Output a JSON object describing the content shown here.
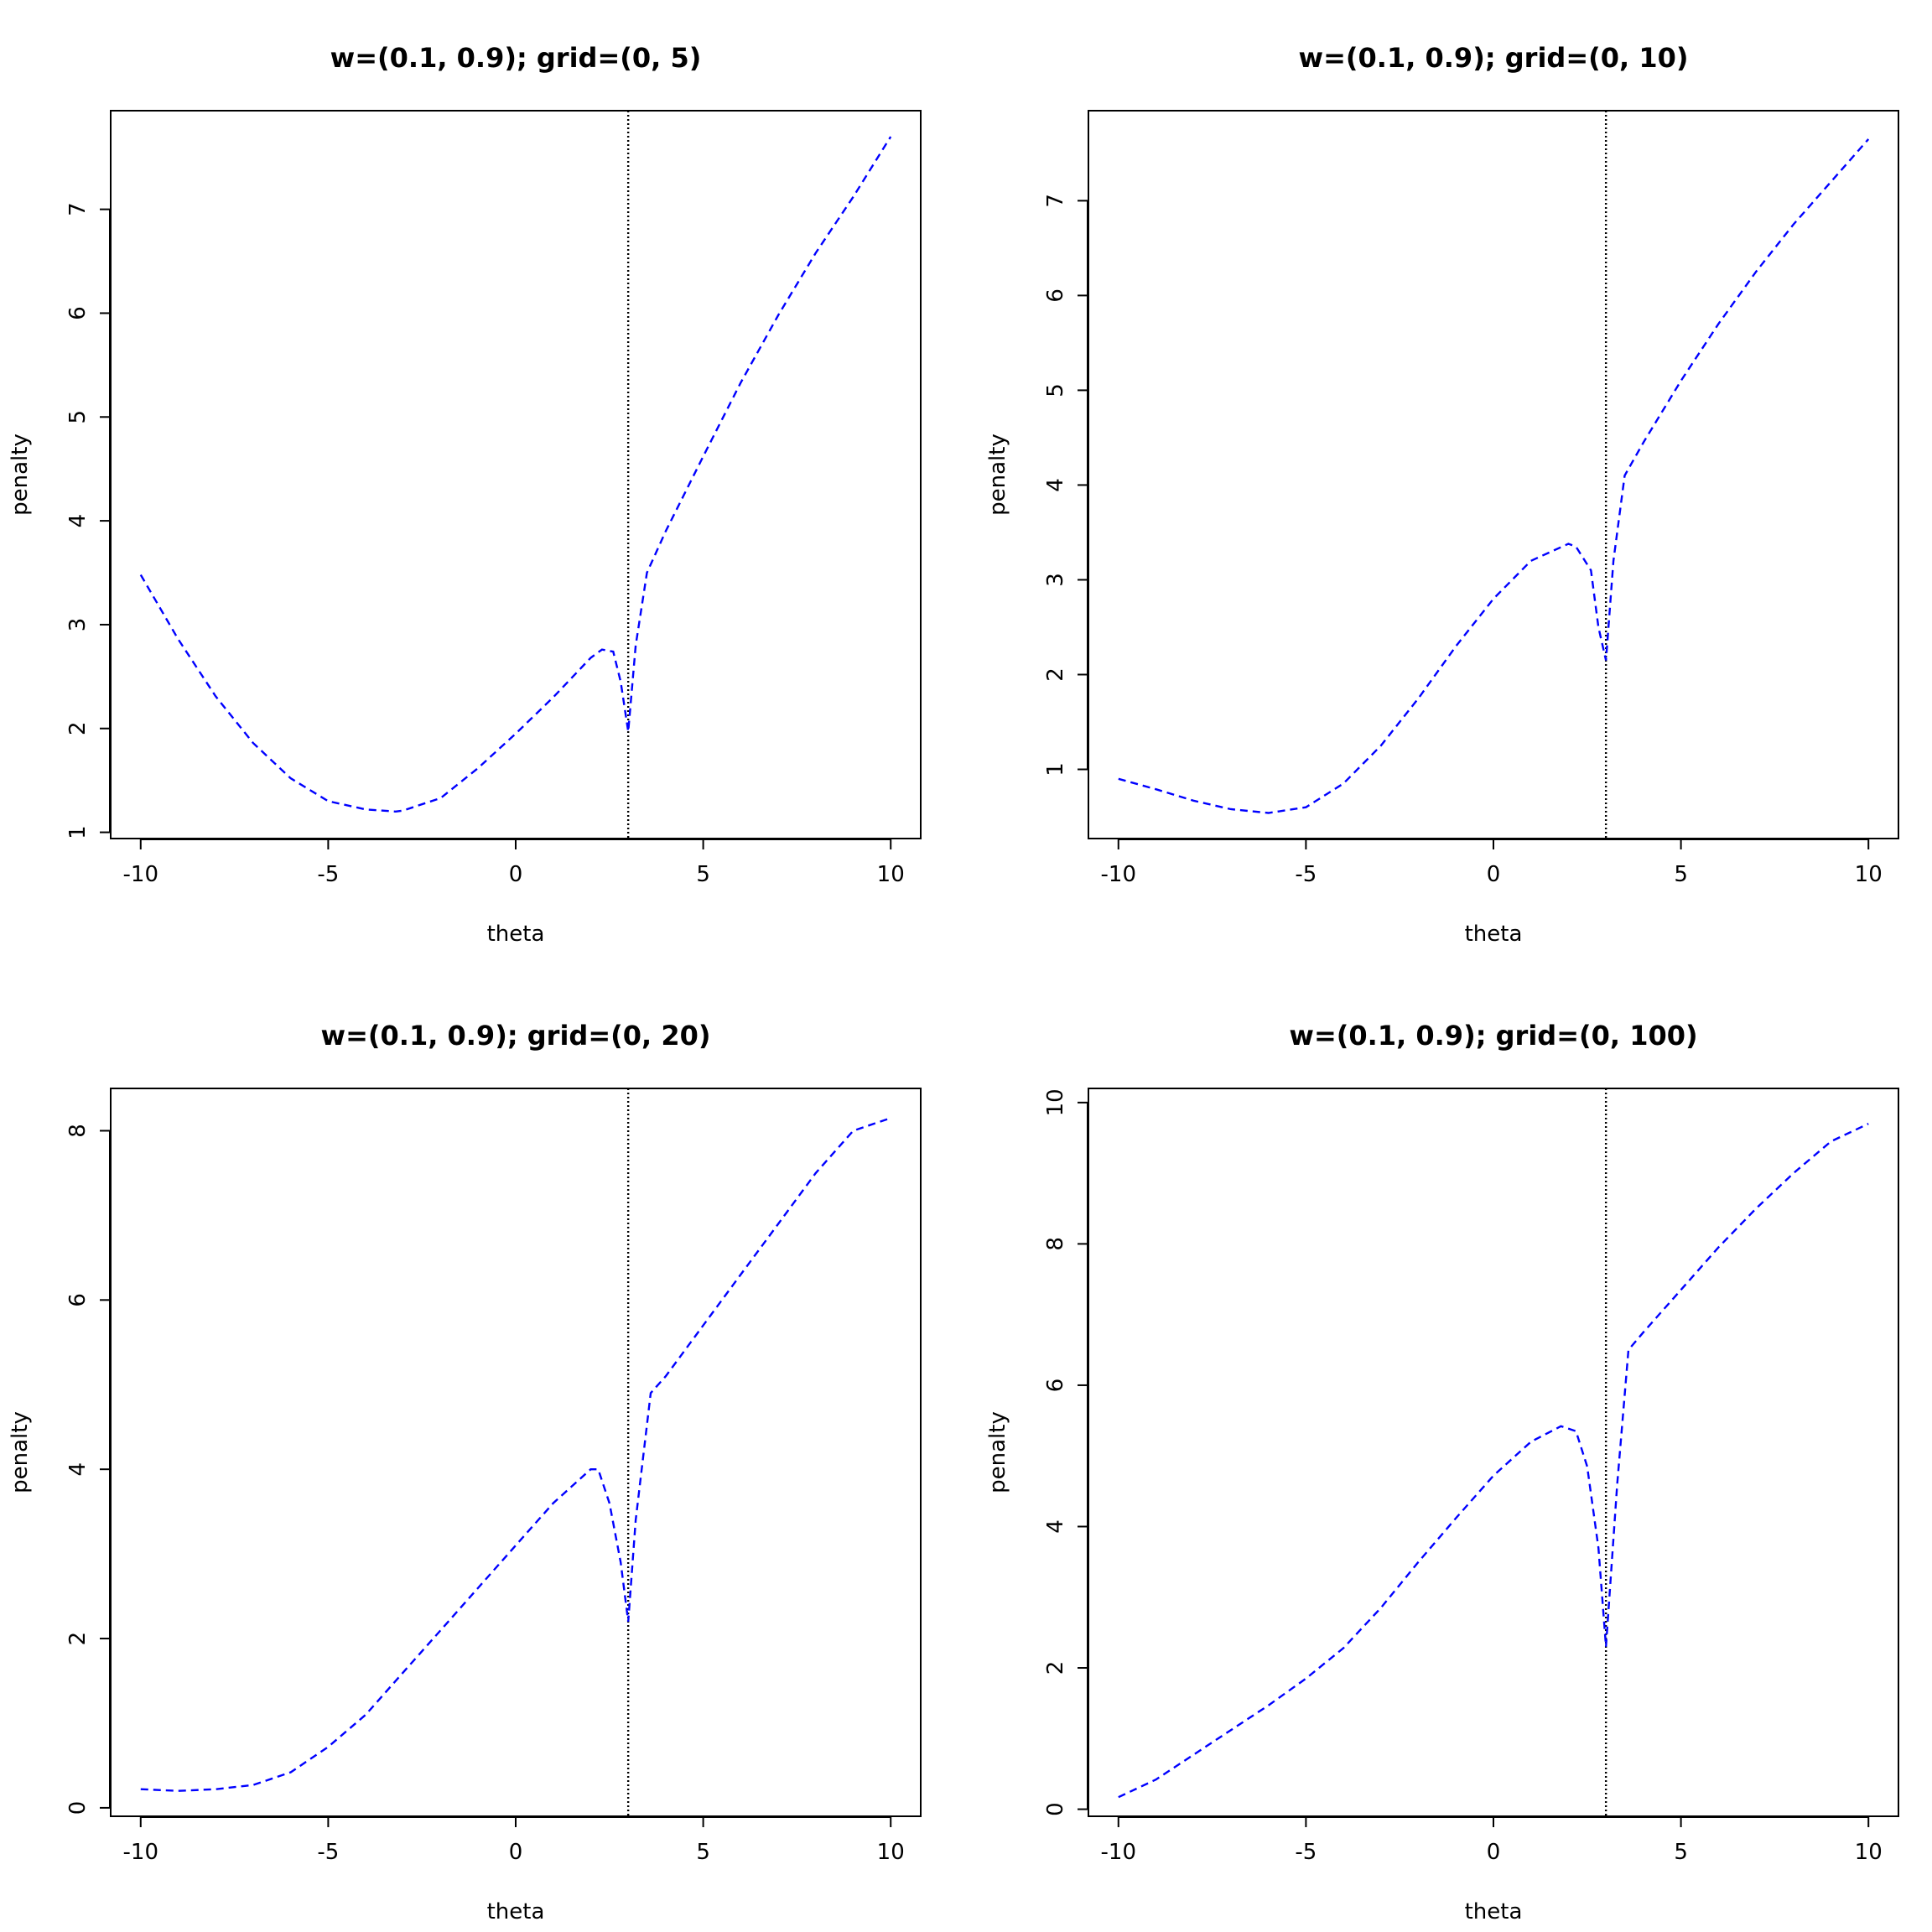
{
  "colors": {
    "series": "#0000ff",
    "reference_line": "#000000",
    "background": "#ffffff"
  },
  "chart_data": [
    {
      "type": "line",
      "title": "w=(0.1, 0.9); grid=(0, 5)",
      "xlabel": "theta",
      "ylabel": "penalty",
      "xlim": [
        -10.8,
        10.8
      ],
      "ylim": [
        0.94,
        7.95
      ],
      "xticks": [
        -10,
        -5,
        0,
        5,
        10
      ],
      "xtick_labels": [
        "-10",
        "-5",
        "0",
        "5",
        "10"
      ],
      "yticks": [
        1,
        2,
        3,
        4,
        5,
        6,
        7
      ],
      "ytick_labels": [
        "1",
        "2",
        "3",
        "4",
        "5",
        "6",
        "7"
      ],
      "reference_line_x": 3,
      "grid": false,
      "series": [
        {
          "line_style": "dashed",
          "x": [
            -10,
            -9,
            -8,
            -7,
            -6,
            -5,
            -4,
            -3.2,
            -3,
            -2,
            -1,
            0,
            1,
            2,
            2.3,
            2.6,
            2.8,
            3,
            3.2,
            3.5,
            4,
            5,
            6,
            7,
            8,
            9,
            10
          ],
          "y": [
            3.48,
            2.86,
            2.31,
            1.86,
            1.52,
            1.3,
            1.22,
            1.2,
            1.21,
            1.33,
            1.62,
            1.95,
            2.3,
            2.68,
            2.76,
            2.74,
            2.45,
            1.97,
            2.8,
            3.5,
            3.9,
            4.62,
            5.33,
            5.98,
            6.58,
            7.12,
            7.7
          ]
        }
      ]
    },
    {
      "type": "line",
      "title": "w=(0.1, 0.9); grid=(0, 10)",
      "xlabel": "theta",
      "ylabel": "penalty",
      "xlim": [
        -10.8,
        10.8
      ],
      "ylim": [
        0.27,
        7.95
      ],
      "xticks": [
        -10,
        -5,
        0,
        5,
        10
      ],
      "xtick_labels": [
        "-10",
        "-5",
        "0",
        "5",
        "10"
      ],
      "yticks": [
        1,
        2,
        3,
        4,
        5,
        6,
        7
      ],
      "ytick_labels": [
        "1",
        "2",
        "3",
        "4",
        "5",
        "6",
        "7"
      ],
      "reference_line_x": 3,
      "grid": false,
      "series": [
        {
          "line_style": "dashed",
          "x": [
            -10,
            -9,
            -8,
            -7,
            -6,
            -5,
            -4,
            -3,
            -2,
            -1,
            0,
            1,
            2,
            2.2,
            2.6,
            2.8,
            3,
            3.2,
            3.5,
            4,
            5,
            6,
            7,
            8,
            9,
            10
          ],
          "y": [
            0.9,
            0.79,
            0.67,
            0.58,
            0.54,
            0.6,
            0.85,
            1.25,
            1.75,
            2.3,
            2.8,
            3.2,
            3.38,
            3.35,
            3.1,
            2.5,
            2.15,
            3.2,
            4.1,
            4.45,
            5.1,
            5.7,
            6.25,
            6.75,
            7.2,
            7.65
          ]
        }
      ]
    },
    {
      "type": "line",
      "title": "w=(0.1, 0.9); grid=(0, 20)",
      "xlabel": "theta",
      "ylabel": "penalty",
      "xlim": [
        -10.8,
        10.8
      ],
      "ylim": [
        -0.1,
        8.5
      ],
      "xticks": [
        -10,
        -5,
        0,
        5,
        10
      ],
      "xtick_labels": [
        "-10",
        "-5",
        "0",
        "5",
        "10"
      ],
      "yticks": [
        0,
        2,
        4,
        6,
        8
      ],
      "ytick_labels": [
        "0",
        "2",
        "4",
        "6",
        "8"
      ],
      "reference_line_x": 3,
      "grid": false,
      "series": [
        {
          "line_style": "dashed",
          "x": [
            -10,
            -9,
            -8,
            -7,
            -6,
            -5,
            -4,
            -3,
            -2,
            -1,
            0,
            1,
            2,
            2.2,
            2.5,
            2.8,
            3,
            3.2,
            3.6,
            4,
            5,
            6,
            7,
            8,
            9,
            10
          ],
          "y": [
            0.22,
            0.2,
            0.22,
            0.27,
            0.42,
            0.72,
            1.1,
            1.6,
            2.1,
            2.6,
            3.1,
            3.6,
            4.0,
            4.0,
            3.6,
            2.9,
            2.2,
            3.4,
            4.9,
            5.1,
            5.7,
            6.3,
            6.9,
            7.5,
            8.0,
            8.15
          ]
        }
      ]
    },
    {
      "type": "line",
      "title": "w=(0.1, 0.9); grid=(0, 100)",
      "xlabel": "theta",
      "ylabel": "penalty",
      "xlim": [
        -10.8,
        10.8
      ],
      "ylim": [
        -0.1,
        10.2
      ],
      "xticks": [
        -10,
        -5,
        0,
        5,
        10
      ],
      "xtick_labels": [
        "-10",
        "-5",
        "0",
        "5",
        "10"
      ],
      "yticks": [
        0,
        2,
        4,
        6,
        8,
        10
      ],
      "ytick_labels": [
        "0",
        "2",
        "4",
        "6",
        "8",
        "10"
      ],
      "reference_line_x": 3,
      "grid": false,
      "series": [
        {
          "line_style": "dashed",
          "x": [
            -10,
            -9,
            -8,
            -7,
            -6,
            -5,
            -4,
            -3,
            -2,
            -1,
            0,
            1,
            1.8,
            2.2,
            2.5,
            2.8,
            3,
            3.3,
            3.6,
            4,
            5,
            6,
            7,
            8,
            9,
            10
          ],
          "y": [
            0.17,
            0.42,
            0.77,
            1.12,
            1.47,
            1.85,
            2.28,
            2.85,
            3.5,
            4.12,
            4.72,
            5.2,
            5.42,
            5.35,
            4.85,
            3.7,
            2.3,
            4.6,
            6.5,
            6.75,
            7.35,
            7.95,
            8.5,
            9.0,
            9.45,
            9.7
          ]
        }
      ]
    }
  ]
}
